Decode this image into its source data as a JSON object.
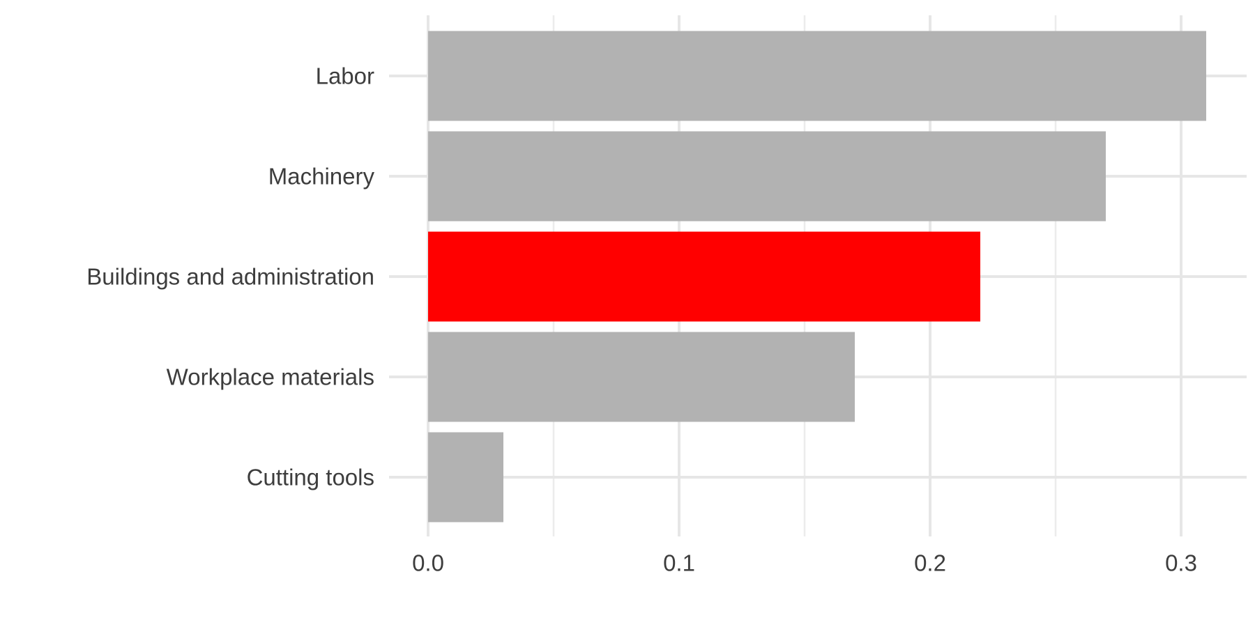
{
  "chart_data": {
    "type": "bar",
    "orientation": "horizontal",
    "title": "",
    "xlabel": "",
    "ylabel": "",
    "categories": [
      "Labor",
      "Machinery",
      "Buildings and administration",
      "Workplace materials",
      "Cutting tools"
    ],
    "values": [
      0.31,
      0.27,
      0.22,
      0.17,
      0.03
    ],
    "highlight": "Buildings and administration",
    "colors": {
      "default": "#b2b2b2",
      "highlight": "#ff0000",
      "grid": "#e6e6e6",
      "text": "#3d3d3d"
    },
    "xlim": [
      0,
      0.325
    ],
    "xticks": [
      0.0,
      0.1,
      0.2,
      0.3
    ],
    "xtick_labels": [
      "0.0",
      "0.1",
      "0.2",
      "0.3"
    ],
    "grid": true,
    "legend": "none"
  }
}
